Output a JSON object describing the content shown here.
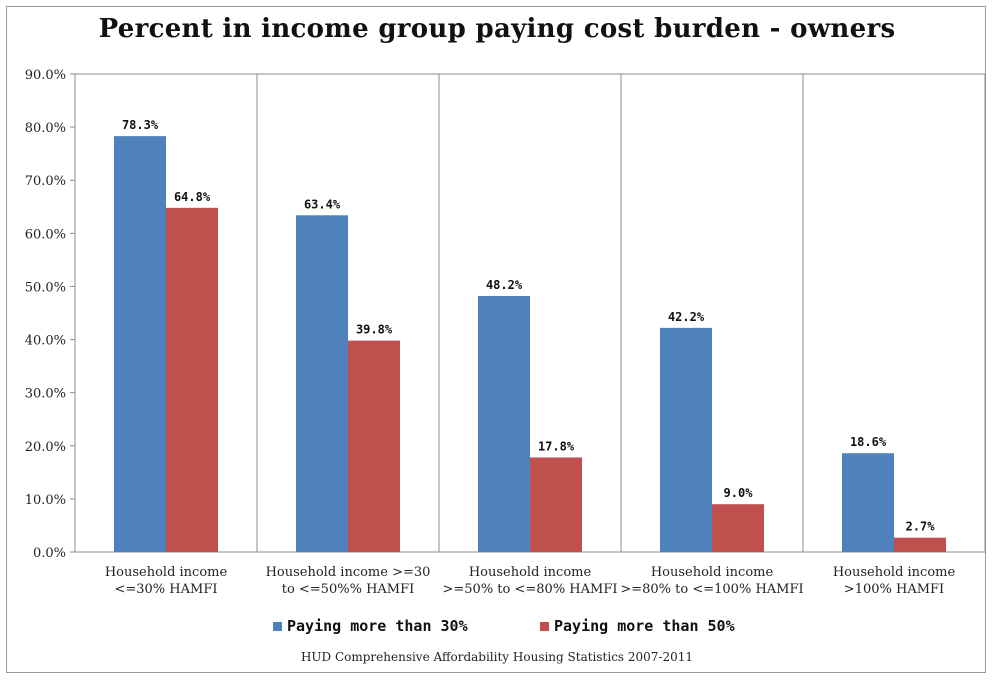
{
  "chart_data": {
    "type": "bar",
    "title": "Percent in income group paying cost burden - owners",
    "categories": [
      [
        "Household income",
        "<=30% HAMFI"
      ],
      [
        "Household income >=30",
        "to <=50%% HAMFI"
      ],
      [
        "Household income",
        ">=50% to <=80% HAMFI"
      ],
      [
        "Household income",
        ">=80% to <=100% HAMFI"
      ],
      [
        "Household income",
        ">100% HAMFI"
      ]
    ],
    "series": [
      {
        "name": "Paying more than 30%",
        "color": "#4f81bd",
        "values": [
          78.3,
          63.4,
          48.2,
          42.2,
          18.6
        ]
      },
      {
        "name": "Paying more than 50%",
        "color": "#c0504d",
        "values": [
          64.8,
          39.8,
          17.8,
          9.0,
          2.7
        ]
      }
    ],
    "data_labels": [
      [
        "78.3%",
        "63.4%",
        "48.2%",
        "42.2%",
        "18.6%"
      ],
      [
        "64.8%",
        "39.8%",
        "17.8%",
        "9.0%",
        "2.7%"
      ]
    ],
    "ylim": [
      0,
      90
    ],
    "yticks": [
      "0.0%",
      "10.0%",
      "20.0%",
      "30.0%",
      "40.0%",
      "50.0%",
      "60.0%",
      "70.0%",
      "80.0%",
      "90.0%"
    ],
    "grid": "vertical category dividers",
    "legend": "bottom",
    "source_note": "HUD Comprehensive Affordability Housing Statistics 2007-2011"
  }
}
